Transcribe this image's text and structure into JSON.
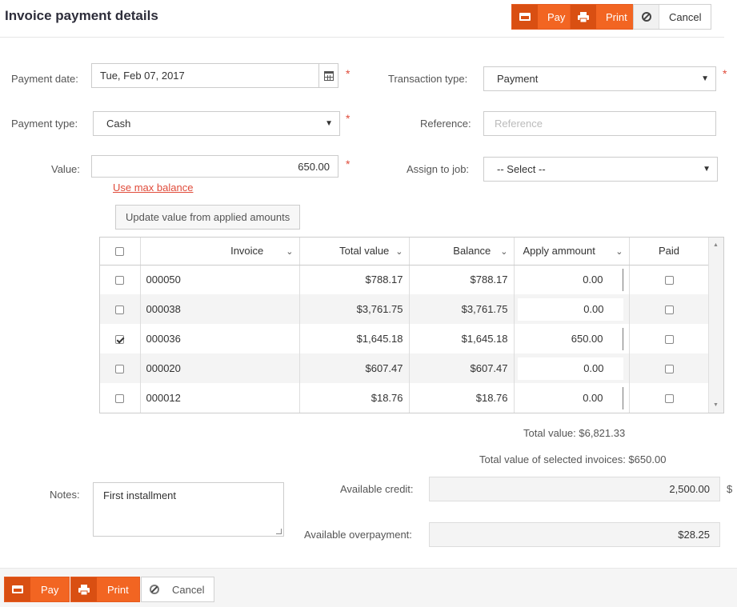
{
  "page": {
    "title": "Invoice payment details"
  },
  "toolbar": {
    "pay_label": "Pay",
    "print_label": "Print",
    "cancel_label": "Cancel"
  },
  "form": {
    "payment_date_label": "Payment date:",
    "payment_date_value": "Tue, Feb 07, 2017",
    "transaction_type_label": "Transaction type:",
    "transaction_type_value": "Payment",
    "payment_type_label": "Payment type:",
    "payment_type_value": "Cash",
    "reference_label": "Reference:",
    "reference_placeholder": "Reference",
    "value_label": "Value:",
    "value_value": "650.00",
    "assign_label": "Assign to job:",
    "assign_value": "-- Select --",
    "use_max_balance": "Use max balance",
    "update_value_button": "Update value from applied amounts",
    "required_mark": "*"
  },
  "grid": {
    "columns": [
      "Invoice",
      "Total value",
      "Balance",
      "Apply ammount",
      "Paid"
    ],
    "rows": [
      {
        "invoice": "000050",
        "total": "$788.17",
        "balance": "$788.17",
        "apply": "0.00",
        "selected": false,
        "paid": false
      },
      {
        "invoice": "000038",
        "total": "$3,761.75",
        "balance": "$3,761.75",
        "apply": "0.00",
        "selected": false,
        "paid": false
      },
      {
        "invoice": "000036",
        "total": "$1,645.18",
        "balance": "$1,645.18",
        "apply": "650.00",
        "selected": true,
        "paid": false
      },
      {
        "invoice": "000020",
        "total": "$607.47",
        "balance": "$607.47",
        "apply": "0.00",
        "selected": false,
        "paid": false
      },
      {
        "invoice": "000012",
        "total": "$18.76",
        "balance": "$18.76",
        "apply": "0.00",
        "selected": false,
        "paid": false
      }
    ]
  },
  "totals": {
    "total_value": "Total value: $6,821.33",
    "selected_total": "Total value of selected invoices: $650.00"
  },
  "notes": {
    "label": "Notes:",
    "value": "First installment"
  },
  "credit": {
    "available_credit_label": "Available credit:",
    "available_credit_value": "2,500.00",
    "currency_symbol": "$",
    "available_overpayment_label": "Available overpayment:",
    "available_overpayment_value": "$28.25"
  },
  "footer": {
    "pay_label": "Pay",
    "print_label": "Print",
    "cancel_label": "Cancel"
  },
  "icons": {
    "pay": "credit-card-icon",
    "print": "printer-icon",
    "cancel": "ban-icon",
    "calendar": "calendar-icon"
  },
  "colors": {
    "accent": "#f26522",
    "accent_dark": "#d94f12",
    "required": "#e04b3a"
  }
}
